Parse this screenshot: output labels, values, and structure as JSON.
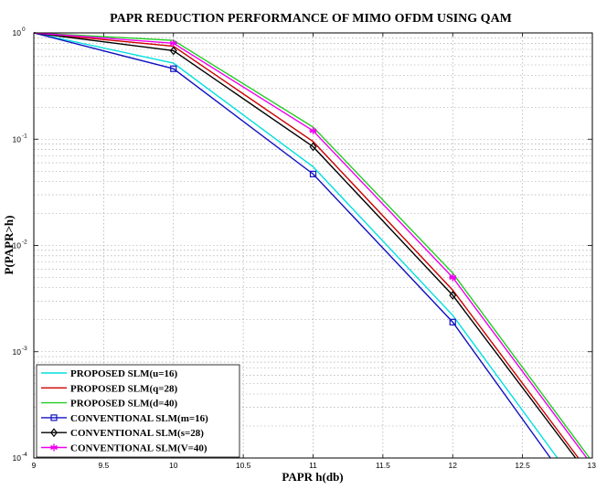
{
  "chart_data": {
    "type": "line",
    "title": "PAPR REDUCTION PERFORMANCE OF MIMO OFDM USING  QAM",
    "xlabel": "PAPR h(db)",
    "ylabel": "P(PAPR>h)",
    "xlim": [
      9,
      13
    ],
    "ylim": [
      0.0001,
      1
    ],
    "yscale": "log",
    "grid": true,
    "legend_position": "bottom-left",
    "x_ticks": [
      "9",
      "9.5",
      "10",
      "10.5",
      "11",
      "11.5",
      "12",
      "12.5",
      "13"
    ],
    "y_ticks": [
      {
        "base": "10",
        "exp": "0"
      },
      {
        "base": "10",
        "exp": "-1"
      },
      {
        "base": "10",
        "exp": "-2"
      },
      {
        "base": "10",
        "exp": "-3"
      },
      {
        "base": "10",
        "exp": "-4"
      }
    ],
    "series": [
      {
        "name": "PROPOSED SLM(u=16)",
        "color": "#00e0e0",
        "marker": "none",
        "x": [
          9,
          10,
          11,
          12,
          12.75
        ],
        "y": [
          1,
          0.52,
          0.055,
          0.0022,
          0.0001
        ]
      },
      {
        "name": "PROPOSED SLM(q=28)",
        "color": "#cc0000",
        "marker": "none",
        "x": [
          9,
          10,
          11,
          12,
          12.9
        ],
        "y": [
          1,
          0.75,
          0.095,
          0.0038,
          0.0001
        ]
      },
      {
        "name": "PROPOSED SLM(d=40)",
        "color": "#22cc22",
        "marker": "none",
        "x": [
          9,
          10,
          11,
          12,
          12.98
        ],
        "y": [
          1,
          0.85,
          0.13,
          0.0055,
          0.0001
        ]
      },
      {
        "name": "CONVENTIONAL SLM(m=16)",
        "color": "#1010c0",
        "marker": "square",
        "x": [
          9,
          10,
          11,
          12,
          12.7
        ],
        "y": [
          1,
          0.46,
          0.047,
          0.0019,
          0.0001
        ]
      },
      {
        "name": "CONVENTIONAL SLM(s=28)",
        "color": "#000000",
        "marker": "diamond",
        "x": [
          9,
          10,
          11,
          12,
          12.88
        ],
        "y": [
          1,
          0.68,
          0.085,
          0.0034,
          0.0001
        ]
      },
      {
        "name": "CONVENTIONAL SLM(V=40)",
        "color": "#ee00ee",
        "marker": "asterisk",
        "x": [
          9,
          10,
          11,
          12,
          12.96
        ],
        "y": [
          1,
          0.8,
          0.12,
          0.005,
          0.0001
        ]
      }
    ]
  }
}
